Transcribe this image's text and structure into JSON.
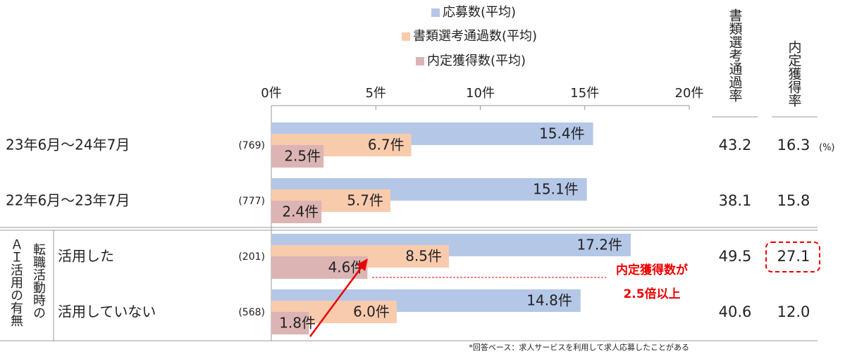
{
  "chart_data": {
    "type": "bar",
    "orientation": "horizontal",
    "categories": [
      "23年6月～24年7月",
      "22年6月～23年7月",
      "活用した",
      "活用していない"
    ],
    "sample_sizes": [
      "(769)",
      "(777)",
      "(201)",
      "(568)"
    ],
    "group_labels": [
      "ＡＩ活用の有無",
      "転職活動時の"
    ],
    "series": [
      {
        "name": "応募数(平均)",
        "color": "#b4c7e7",
        "values": [
          15.4,
          15.1,
          17.2,
          14.8
        ],
        "value_labels": [
          "15.4件",
          "15.1件",
          "17.2件",
          "14.8件"
        ]
      },
      {
        "name": "書類選考通過数(平均)",
        "color": "#f8cbad",
        "values": [
          6.7,
          5.7,
          8.5,
          6.0
        ],
        "value_labels": [
          "6.7件",
          "5.7件",
          "8.5件",
          "6.0件"
        ]
      },
      {
        "name": "内定獲得数(平均)",
        "color": "#dcb4b4",
        "values": [
          2.5,
          2.4,
          4.6,
          1.8
        ],
        "value_labels": [
          "2.5件",
          "2.4件",
          "4.6件",
          "1.8件"
        ]
      }
    ],
    "xlim": [
      0,
      20
    ],
    "xticks": [
      {
        "value": 0,
        "label": "0件"
      },
      {
        "value": 5,
        "label": "5件"
      },
      {
        "value": 10,
        "label": "10件"
      },
      {
        "value": 15,
        "label": "15件"
      },
      {
        "value": 20,
        "label": "20件"
      }
    ],
    "annotation": [
      "内定獲得数が",
      "2.5倍以上"
    ],
    "footnote": "*回答ベース：求人サービスを利用して求人応募したことがある"
  },
  "rate_table": {
    "columns": [
      "書類選考通過率",
      "内定獲得率"
    ],
    "unit": "(%)",
    "rows": [
      [
        "43.2",
        "16.3"
      ],
      [
        "38.1",
        "15.8"
      ],
      [
        "49.5",
        "27.1"
      ],
      [
        "40.6",
        "12.0"
      ]
    ]
  }
}
